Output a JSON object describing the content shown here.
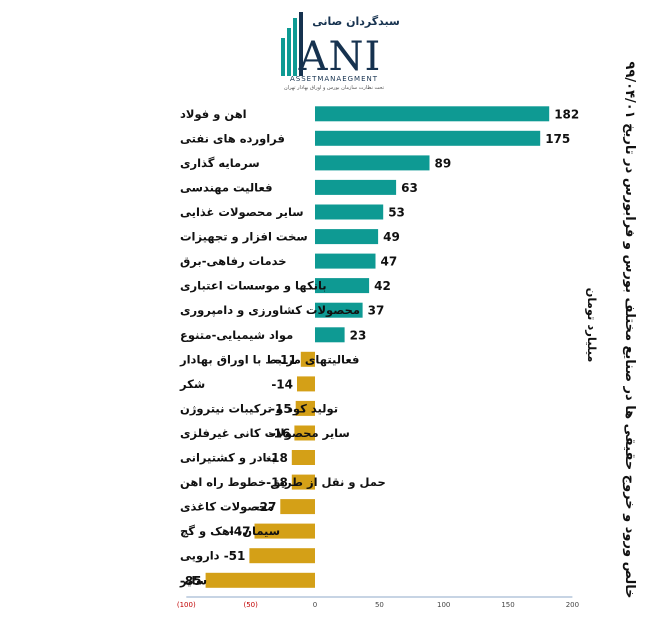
{
  "logo": {
    "name_fa": "سبدگردان صانی",
    "name_en": "ANI",
    "subtitle": "ASSETMANAEGMENT",
    "tagline": "تحت نظارت سازمان بورس و اوراق بهادار تهران"
  },
  "chart_data": {
    "type": "bar",
    "orientation": "horizontal",
    "title": "خالص ورود و خروج حقیقی ها در صنایع مختلف بورس و فرابورس در تاریخ ۹۹/۰۴/۰۱",
    "unit_label": "میلیارد تومان",
    "categories": [
      "اهن و فولاد",
      "فراورده های نفتی",
      "سرمایه گذاری",
      "فعالیت مهندسی",
      "سایر محصولات غذایی",
      "سخت افزار و تجهیزات",
      "خدمات رفاهی-برق",
      "بانکها و موسسات اعتباری",
      "محصولات کشاورزی و دامپروری",
      "مواد شیمیایی-متنوع",
      "فعالیتهای مرتبط با اوراق بهادار",
      "شکر",
      "تولید کود و ترکیبات نیتروژن",
      "سایر محصولات کانی غیرفلزی",
      "بنادر و کشتیرانی",
      "حمل و نقل از طریق خطوط راه اهن",
      "محصولات کاغذی",
      "سیمان، اهک و گچ",
      "دارویی",
      "سایر"
    ],
    "values": [
      182,
      175,
      89,
      63,
      53,
      49,
      47,
      42,
      37,
      23,
      -11,
      -14,
      -15,
      -16,
      -18,
      -18,
      -27,
      -47,
      -51,
      -85
    ],
    "value_labels": [
      "182",
      "175",
      "89",
      "63",
      "53",
      "49",
      "47",
      "42",
      "37",
      "23",
      "-11",
      "-14",
      "-15",
      "-16",
      "-18",
      "-18",
      "-27",
      "-47",
      "-51",
      "-85"
    ],
    "xlim": [
      -100,
      200
    ],
    "x_ticks": [
      -100,
      -50,
      0,
      50,
      100,
      150,
      200
    ],
    "x_tick_labels": [
      "(100)",
      "(50)",
      "0",
      "50",
      "100",
      "150",
      "200"
    ],
    "colors": {
      "positive": "#0e9a93",
      "negative": "#d4a017",
      "negative_tick": "#c00000",
      "positive_tick": "#444444",
      "axis": "#8fa9c9"
    },
    "grid": false,
    "legend": "none"
  }
}
